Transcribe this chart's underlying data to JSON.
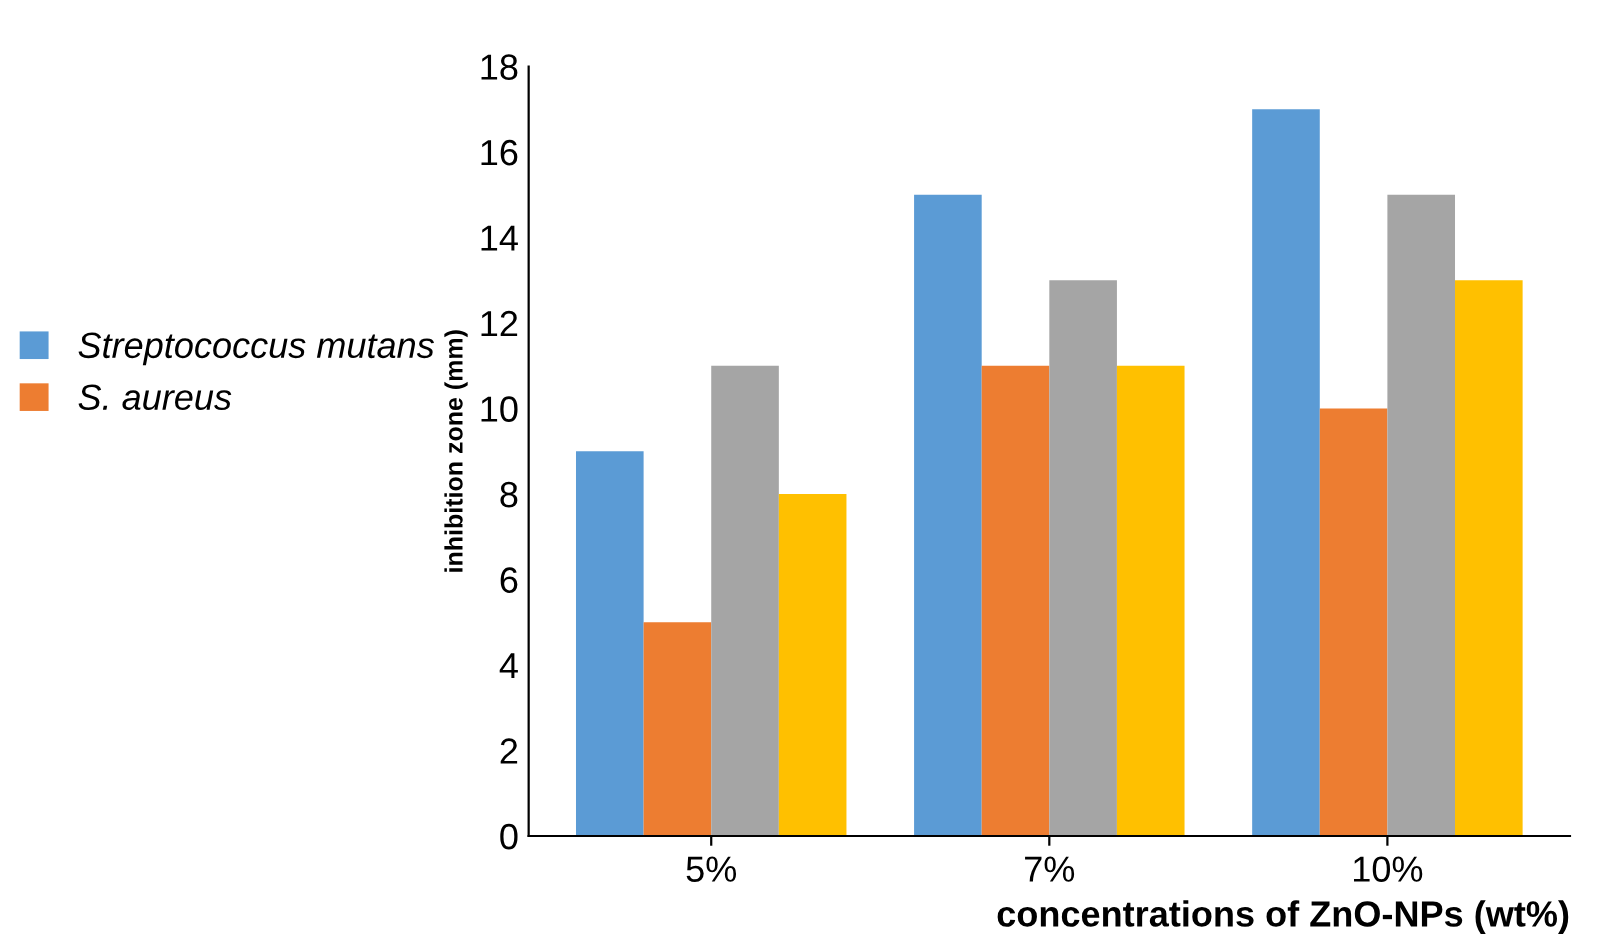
{
  "chart_data": {
    "type": "bar",
    "xlabel": "concentrations of ZnO-NPs (wt%)",
    "ylabel": "inhibition zone (mm)",
    "categories": [
      "5%",
      "7%",
      "10%"
    ],
    "series": [
      {
        "name": "Streptococcus mutans",
        "color": "#5b9bd5",
        "values": [
          9,
          15,
          17
        ]
      },
      {
        "name": "S. aureus",
        "color": "#ed7d31",
        "values": [
          5,
          11,
          10
        ]
      },
      {
        "color": "#a5a5a5",
        "values": [
          11,
          13,
          15
        ]
      },
      {
        "color": "#ffc000",
        "values": [
          8,
          11,
          13
        ]
      }
    ],
    "ylim": [
      0,
      18
    ],
    "yticks": [
      0,
      2,
      4,
      6,
      8,
      10,
      12,
      14,
      16,
      18
    ],
    "grid": false,
    "legend": "left"
  }
}
